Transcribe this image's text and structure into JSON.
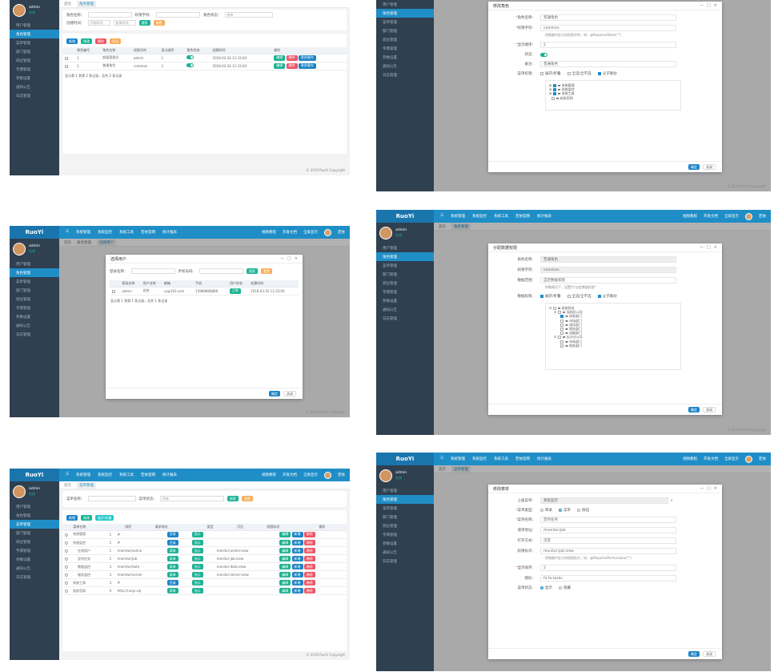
{
  "app": {
    "logo": "RuoYi",
    "user": "admin",
    "status": "在线",
    "logout": "注销",
    "top_right_name": "若依"
  },
  "top_nav": [
    "系统管理",
    "系统监控",
    "系统工具",
    "若依官网",
    "统计报表"
  ],
  "top_right": [
    "视频教程",
    "开发文档",
    "全屏显示"
  ],
  "sidebar": [
    "用户管理",
    "角色管理",
    "菜单管理",
    "部门管理",
    "岗位管理",
    "字典管理",
    "参数设置",
    "通知公告",
    "日志管理"
  ],
  "tabs": {
    "home": "首页",
    "role": "角色管理",
    "menu": "菜单管理",
    "assign": "选择用户"
  },
  "copyright": "© 2019 RuoYi Copyright",
  "role_list": {
    "search": {
      "name_label": "角色名称：",
      "key_label": "权限字符：",
      "status_label": "角色状态：",
      "status_value": "所有",
      "time_label": "创建时间：",
      "start": "开始时间",
      "end": "结束时间",
      "search_btn": "搜索",
      "reset_btn": "重置"
    },
    "toolbar": [
      "新增",
      "修改",
      "删除",
      "导出"
    ],
    "columns": [
      "角色编号",
      "角色名称",
      "权限字符",
      "显示顺序",
      "角色状态",
      "创建时间",
      "操作"
    ],
    "rows": [
      {
        "id": "1",
        "name": "超级管理员",
        "key": "admin",
        "sort": "1",
        "time": "2018-03-16 11:33:00"
      },
      {
        "id": "2",
        "name": "普通角色",
        "key": "common",
        "sort": "2",
        "time": "2018-03-16 11:33:00"
      }
    ],
    "actions": [
      "编辑",
      "删除",
      "更多操作"
    ],
    "pager": "显示第 1 到第 2 条记录，总共 2 条记录"
  },
  "role_edit": {
    "title": "修改角色",
    "name_label": "角色名称：",
    "name": "普通角色",
    "key_label": "权限字符：",
    "key": "common",
    "key_hint": "控制器中定义的权限字符，如：@RequiresRoles(\"\")",
    "sort_label": "显示顺序：",
    "sort": "2",
    "status_label": "状态：",
    "remark_label": "备注：",
    "remark": "普通角色",
    "perm_label": "菜单权限：",
    "opts": [
      "展开/折叠",
      "全选/全不选",
      "父子联动"
    ],
    "tree": [
      "系统管理",
      "系统监控",
      "系统工具",
      "若依官网"
    ],
    "ok": "确定",
    "close": "关闭"
  },
  "assign_user": {
    "title": "选择用户",
    "login_label": "登录名称：",
    "phone_label": "手机号码：",
    "search_btn": "搜索",
    "reset_btn": "重置",
    "columns": [
      "登录名称",
      "用户名称",
      "邮箱",
      "手机",
      "用户状态",
      "创建时间"
    ],
    "row": {
      "login": "admin",
      "name": "若依",
      "email": "ry@163.com",
      "phone": "15888888888",
      "status": "正常",
      "time": "2018-03-16 11:33:00"
    },
    "pager": "显示第 1 到第 1 条记录，总共 1 条记录",
    "ok": "确定",
    "close": "关闭"
  },
  "data_scope": {
    "title": "分配数据权限",
    "name_label": "角色名称：",
    "name": "普通角色",
    "key_label": "权限字符：",
    "key": "common",
    "scope_label": "数据范围：",
    "scope": "自定数据权限",
    "scope_hint": "特殊情况下，设置为\"自定数据权限\"",
    "perm_label": "数据权限：",
    "opts": [
      "展开/折叠",
      "全选/全不选",
      "父子联动"
    ],
    "tree": [
      "若依科技",
      "深圳总公司",
      "研发部门",
      "市场部门",
      "测试部门",
      "财务部门",
      "运维部门",
      "长沙分公司",
      "市场部门",
      "财务部门"
    ],
    "ok": "确定",
    "close": "关闭"
  },
  "menu_list": {
    "search": {
      "name_label": "菜单名称：",
      "status_label": "菜单状态：",
      "status_value": "所有",
      "search_btn": "搜索",
      "reset_btn": "重置"
    },
    "toolbar": [
      "新增",
      "修改",
      "展开/折叠"
    ],
    "columns": [
      "菜单名称",
      "排序",
      "请求地址",
      "类型",
      "可见",
      "权限标识",
      "操作"
    ],
    "rows": [
      {
        "name": "系统管理",
        "sort": "1",
        "url": "#",
        "type": "目录",
        "perm": ""
      },
      {
        "name": "系统监控",
        "sort": "2",
        "url": "#",
        "type": "目录",
        "perm": ""
      },
      {
        "name": "在线用户",
        "sort": "1",
        "url": "/monitor/online",
        "type": "菜单",
        "perm": "monitor:online:view"
      },
      {
        "name": "定时任务",
        "sort": "2",
        "url": "/monitor/job",
        "type": "菜单",
        "perm": "monitor:job:view"
      },
      {
        "name": "数据监控",
        "sort": "3",
        "url": "/monitor/data",
        "type": "菜单",
        "perm": "monitor:data:view"
      },
      {
        "name": "服务监控",
        "sort": "3",
        "url": "/monitor/server",
        "type": "菜单",
        "perm": "monitor:server:view"
      },
      {
        "name": "系统工具",
        "sort": "3",
        "url": "#",
        "type": "目录",
        "perm": ""
      },
      {
        "name": "若依官网",
        "sort": "4",
        "url": "http://ruoyi.vip",
        "type": "菜单",
        "perm": ""
      }
    ],
    "visible": "显示",
    "actions": [
      "编辑",
      "新增",
      "删除"
    ]
  },
  "menu_edit": {
    "title": "修改菜单",
    "parent_label": "上级菜单：",
    "parent": "系统监控",
    "type_label": "菜单类型：",
    "types": [
      "目录",
      "菜单",
      "按钮"
    ],
    "name_label": "菜单名称：",
    "name": "定时任务",
    "url_label": "请求地址：",
    "url": "/monitor/job",
    "target_label": "打开方式：",
    "target": "页签",
    "perm_label": "权限标识：",
    "perm": "monitor:job:view",
    "perm_hint": "控制器中定义的权限标识，如：@RequiresPermissions(\"\")",
    "sort_label": "显示排序：",
    "sort": "2",
    "icon_label": "图标：",
    "icon": "fa fa-tasks",
    "visible_label": "菜单状态：",
    "visible": [
      "显示",
      "隐藏"
    ],
    "ok": "确定",
    "close": "关闭"
  }
}
